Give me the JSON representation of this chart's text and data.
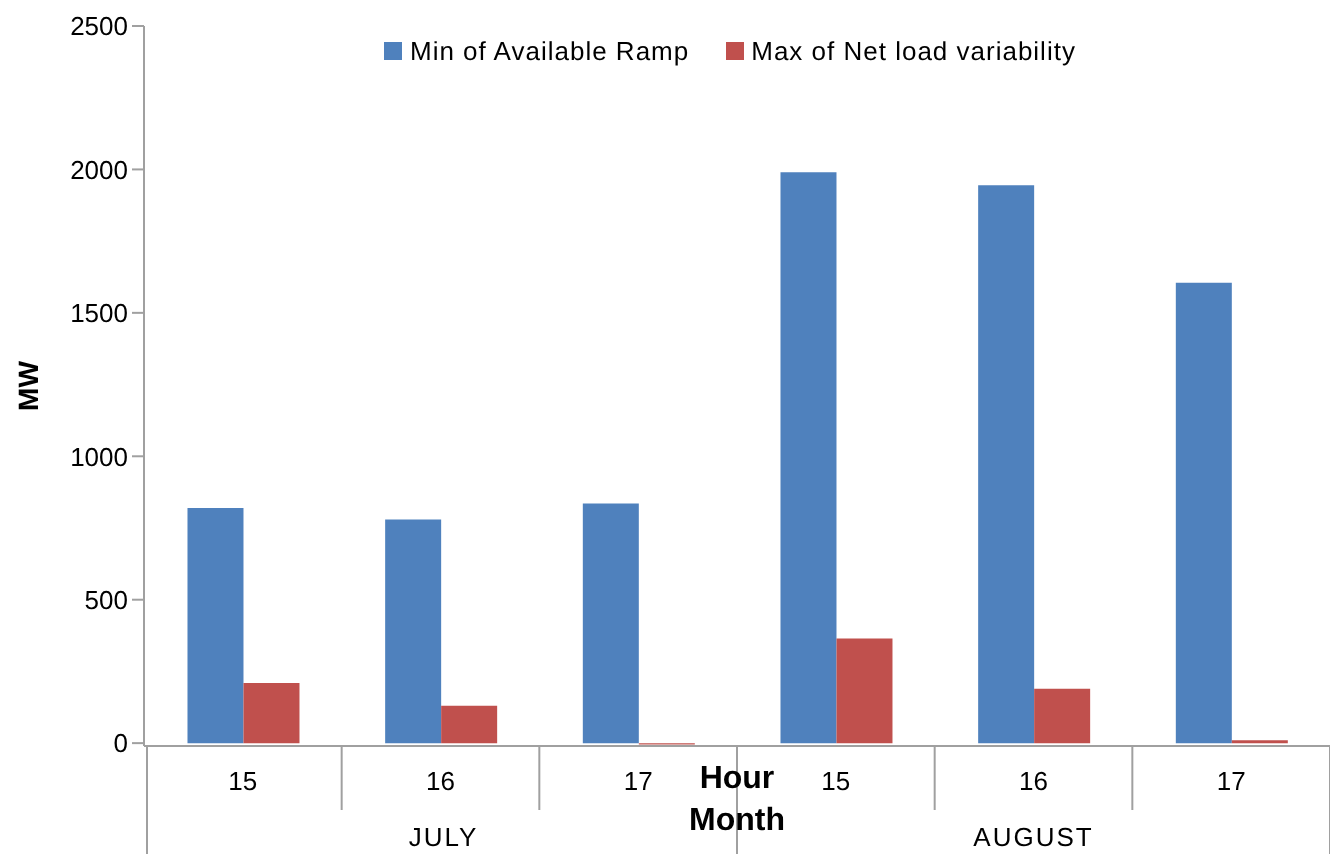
{
  "chart_data": {
    "type": "bar",
    "categories": [
      "15",
      "16",
      "17",
      "15",
      "16",
      "17"
    ],
    "series": [
      {
        "name": "Min of Available Ramp",
        "color": "#4f81bd",
        "values": [
          820,
          780,
          835,
          1990,
          1945,
          1605
        ]
      },
      {
        "name": "Max of Net load variability",
        "color": "#c0504d",
        "values": [
          210,
          130,
          -5,
          365,
          190,
          10
        ]
      }
    ],
    "ylim": [
      -10,
      2500
    ],
    "yticks": [
      0,
      500,
      1000,
      1500,
      2000,
      2500
    ],
    "ylabel": "MW",
    "xlabel": "Hour",
    "annotations": [
      "Month",
      "JULY",
      "AUGUST"
    ],
    "grid": false,
    "legend": "top"
  }
}
